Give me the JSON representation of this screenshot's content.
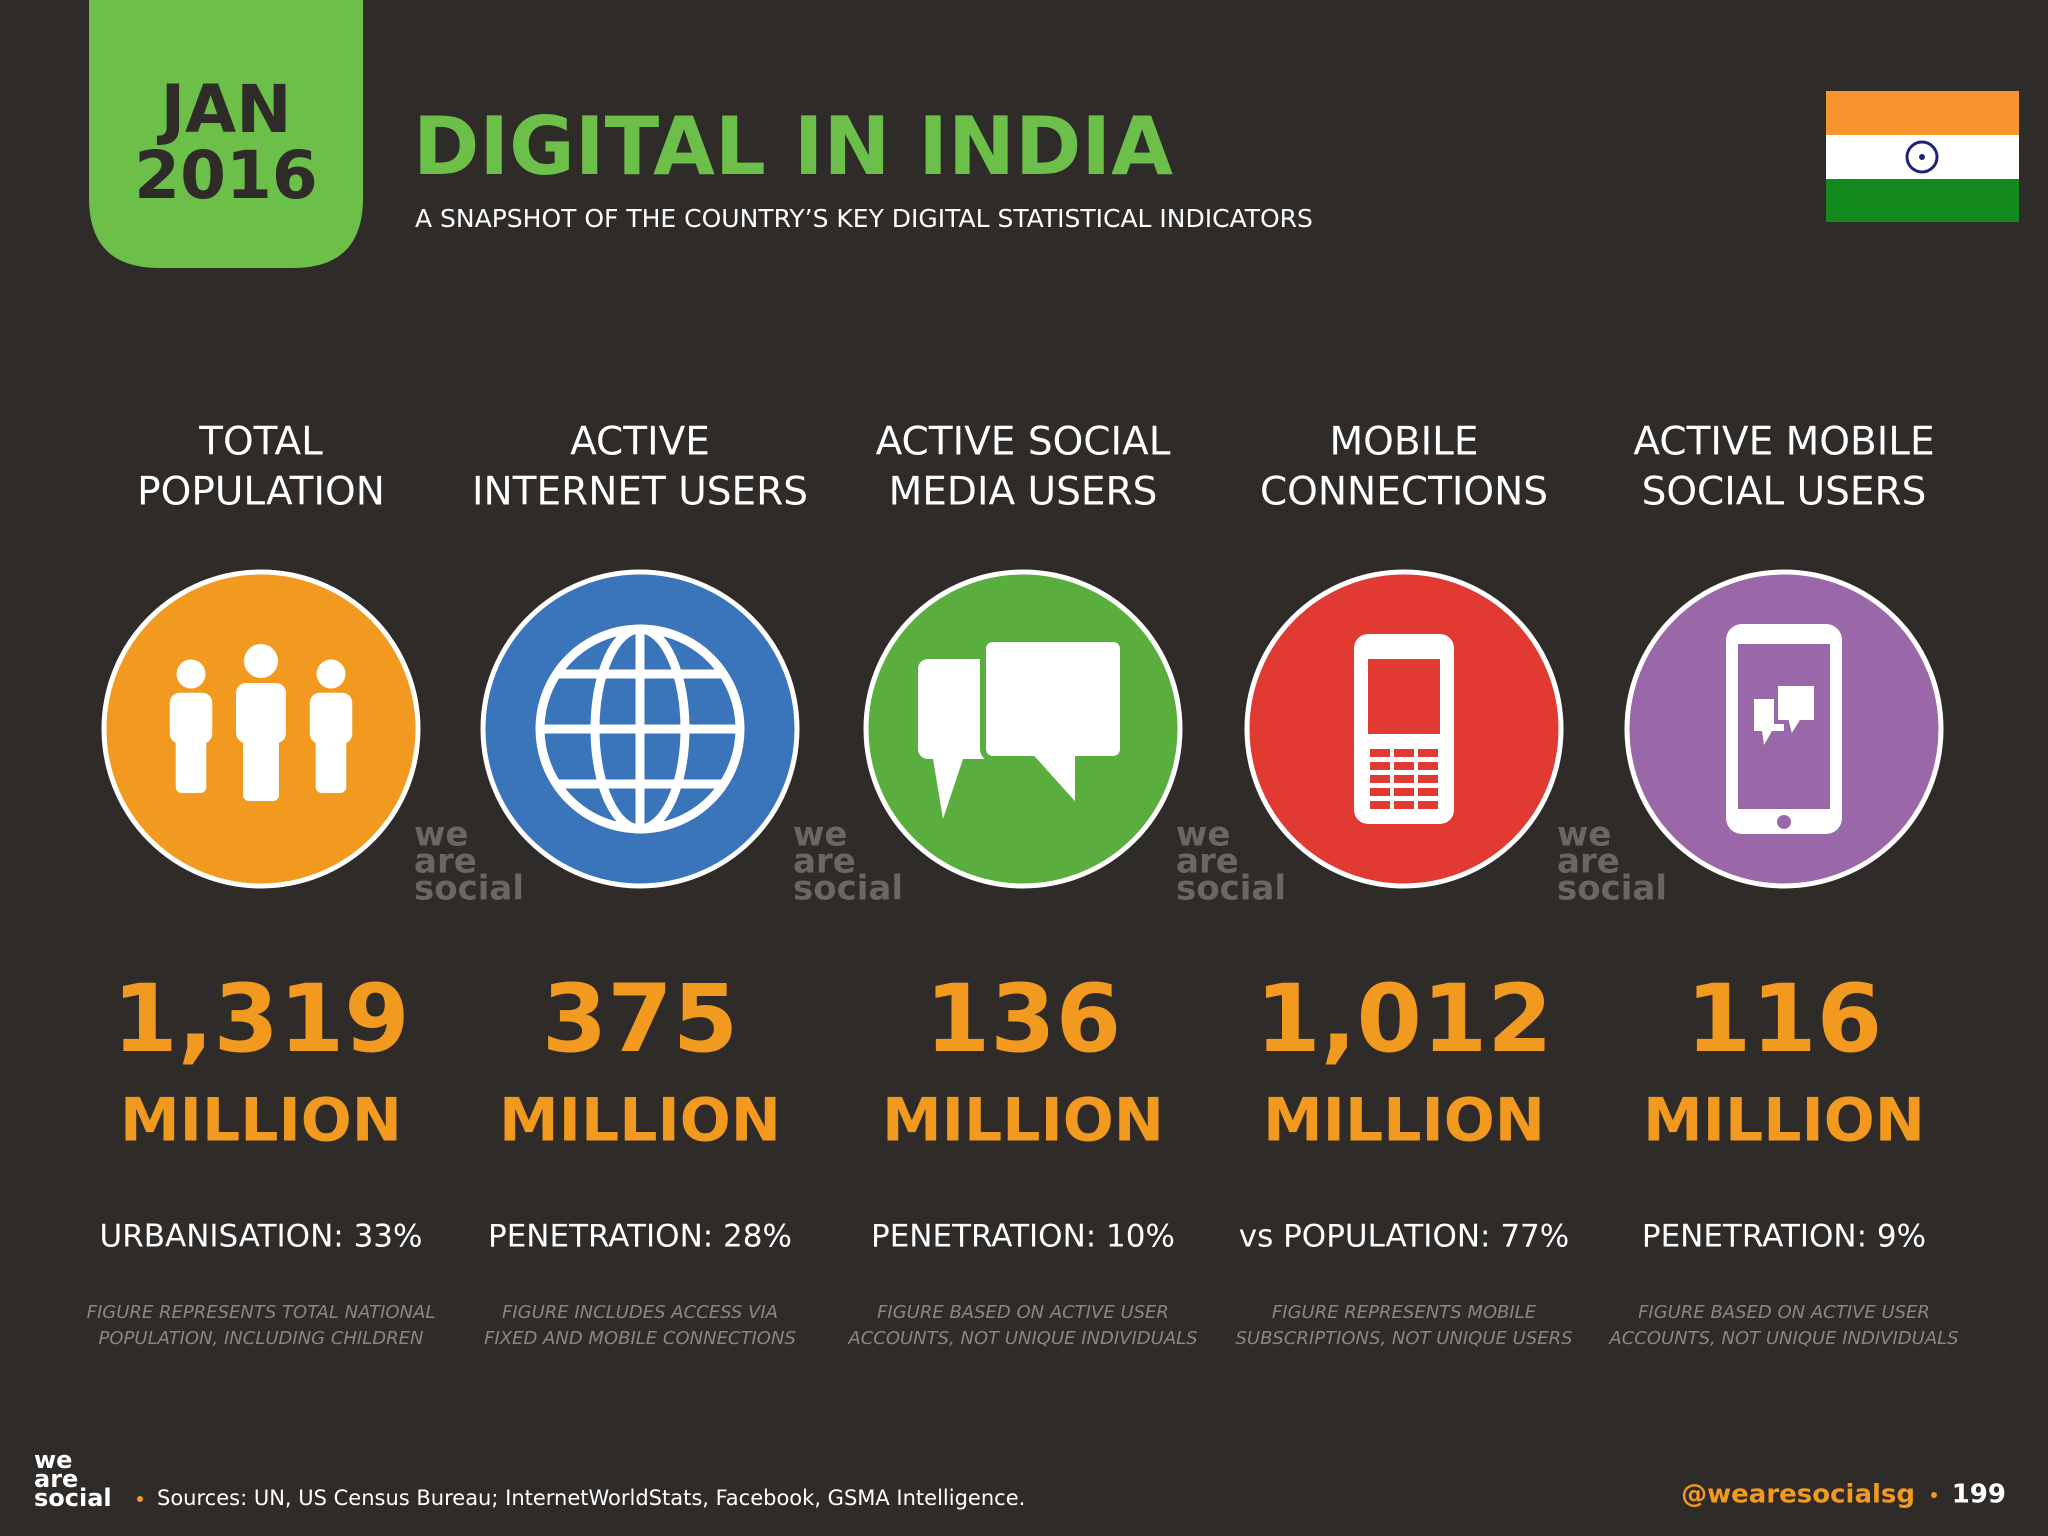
{
  "header": {
    "date_line1": "JAN",
    "date_line2": "2016",
    "title": "DIGITAL IN INDIA",
    "subtitle": "A SNAPSHOT OF THE COUNTRY’S KEY DIGITAL STATISTICAL INDICATORS"
  },
  "watermark": [
    "we",
    "are",
    "social"
  ],
  "columns": [
    {
      "heading": [
        "TOTAL",
        "POPULATION"
      ],
      "figure": "1,319",
      "unit": "MILLION",
      "stat": "URBANISATION: 33%",
      "note": [
        "FIGURE REPRESENTS TOTAL NATIONAL",
        "POPULATION, INCLUDING CHILDREN"
      ]
    },
    {
      "heading": [
        "ACTIVE",
        "INTERNET USERS"
      ],
      "figure": "375",
      "unit": "MILLION",
      "stat": "PENETRATION: 28%",
      "note": [
        "FIGURE INCLUDES ACCESS VIA",
        "FIXED AND MOBILE CONNECTIONS"
      ]
    },
    {
      "heading": [
        "ACTIVE SOCIAL",
        "MEDIA USERS"
      ],
      "figure": "136",
      "unit": "MILLION",
      "stat": "PENETRATION: 10%",
      "note": [
        "FIGURE BASED ON ACTIVE USER",
        "ACCOUNTS, NOT UNIQUE INDIVIDUALS"
      ]
    },
    {
      "heading": [
        "MOBILE",
        "CONNECTIONS"
      ],
      "figure": "1,012",
      "unit": "MILLION",
      "stat": "vs POPULATION: 77%",
      "note": [
        "FIGURE REPRESENTS MOBILE",
        "SUBSCRIPTIONS, NOT UNIQUE USERS"
      ]
    },
    {
      "heading": [
        "ACTIVE MOBILE",
        "SOCIAL USERS"
      ],
      "figure": "116",
      "unit": "MILLION",
      "stat": "PENETRATION: 9%",
      "note": [
        "FIGURE BASED ON ACTIVE USER",
        "ACCOUNTS, NOT UNIQUE INDIVIDUALS"
      ]
    }
  ],
  "footer": {
    "sources": "Sources: UN, US Census Bureau; InternetWorldStats, Facebook, GSMA Intelligence.",
    "handle": "@wearesocialsg",
    "page": "199"
  }
}
